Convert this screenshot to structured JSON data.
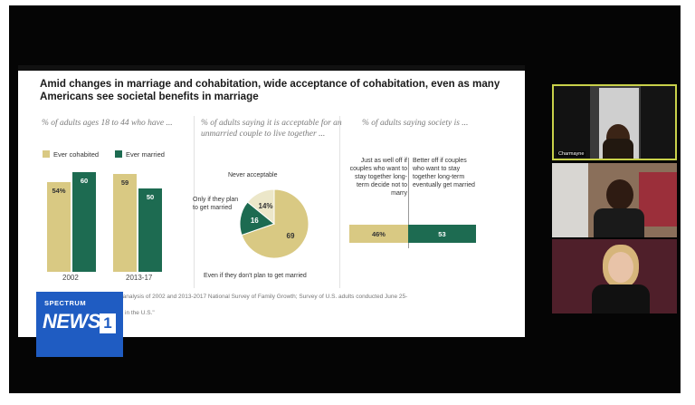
{
  "colors": {
    "tan": "#d9c983",
    "green": "#1d6b51",
    "logo_blue": "#1f5cc2",
    "active_border": "#c9d14a"
  },
  "slide": {
    "title": "Amid changes in marriage and cohabitation, wide acceptance of cohabitation, even as many Americans see societal benefits in marriage",
    "source": "Source: Pew Research Center analysis of 2002 and 2013-2017 National Survey of Family Growth; Survey of U.S. adults conducted June 25-",
    "source_tail": "in the U.S.\""
  },
  "panel1": {
    "subtitle": "% of adults ages 18 to 44 who have ...",
    "legend": [
      "Ever cohabited",
      "Ever married"
    ]
  },
  "panel2": {
    "subtitle": "% of adults saying it is acceptable for an unmarried couple to live together ...",
    "labels": {
      "never": "Never acceptable",
      "only": "Only if they plan to get married",
      "even": "Even if they don't plan to get married"
    }
  },
  "panel3": {
    "subtitle": "% of adults saying society is ...",
    "left_label": "Just as well off if couples who want to stay together long-term decide not to marry",
    "right_label": "Better off if couples who want to stay together long-term eventually get married"
  },
  "chart_data": [
    {
      "type": "bar",
      "categories": [
        "2002",
        "2013-17"
      ],
      "series": [
        {
          "name": "Ever cohabited",
          "values": [
            54,
            59
          ]
        },
        {
          "name": "Ever married",
          "values": [
            60,
            50
          ]
        }
      ],
      "value_labels": [
        [
          "54%",
          "60"
        ],
        [
          "59",
          "50"
        ]
      ],
      "ylim": [
        0,
        70
      ]
    },
    {
      "type": "pie",
      "slices": [
        {
          "name": "Even if they don't plan to get married",
          "value": 69
        },
        {
          "name": "Only if they plan to get married",
          "value": 16
        },
        {
          "name": "Never acceptable",
          "value": 14
        }
      ]
    },
    {
      "type": "bar",
      "orientation": "horizontal-stacked",
      "segments": [
        {
          "name": "Just as well off if couples who want to stay together long-term decide not to marry",
          "value": 46,
          "label": "46%"
        },
        {
          "name": "Better off if couples who want to stay together long-term eventually get married",
          "value": 53,
          "label": "53"
        }
      ]
    }
  ],
  "logo": {
    "top": "SPECTRUM",
    "big": "NEWS",
    "one": "1"
  },
  "participants": [
    {
      "name": "Charmayne"
    }
  ]
}
